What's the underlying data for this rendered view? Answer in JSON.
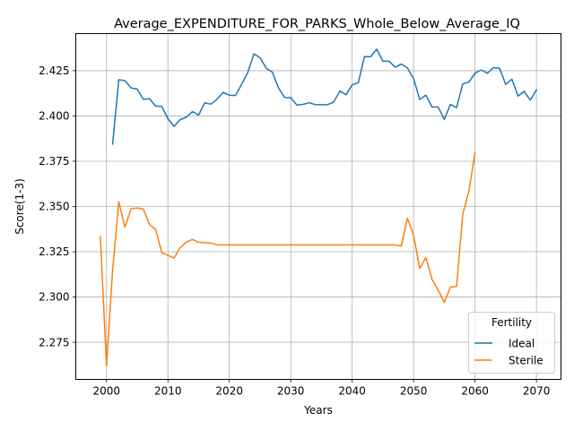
{
  "chart_data": {
    "type": "line",
    "title": "Average_EXPENDITURE_FOR_PARKS_Whole_Below_Average_IQ",
    "xlabel": "Years",
    "ylabel": "Score(1-3)",
    "xlim": [
      1995,
      2074
    ],
    "ylim": [
      2.2545,
      2.4455
    ],
    "xticks": [
      2000,
      2010,
      2020,
      2030,
      2040,
      2050,
      2060,
      2070
    ],
    "yticks": [
      2.275,
      2.3,
      2.325,
      2.35,
      2.375,
      2.4,
      2.425
    ],
    "ytick_labels": [
      "2.275",
      "2.300",
      "2.325",
      "2.350",
      "2.375",
      "2.400",
      "2.425"
    ],
    "grid": true,
    "legend": {
      "title": "Fertility",
      "placement": "lower-right"
    },
    "series": [
      {
        "name": "Ideal",
        "color": "#1f77b4",
        "x": [
          2001,
          2002,
          2003,
          2004,
          2005,
          2006,
          2007,
          2008,
          2009,
          2010,
          2011,
          2012,
          2013,
          2014,
          2015,
          2016,
          2017,
          2018,
          2019,
          2020,
          2021,
          2022,
          2023,
          2024,
          2025,
          2026,
          2027,
          2028,
          2029,
          2030,
          2031,
          2032,
          2033,
          2034,
          2035,
          2036,
          2037,
          2038,
          2039,
          2040,
          2041,
          2042,
          2043,
          2044,
          2045,
          2046,
          2047,
          2048,
          2049,
          2050,
          2051,
          2052,
          2053,
          2054,
          2055,
          2056,
          2057,
          2058,
          2059,
          2060,
          2061,
          2062,
          2063,
          2064,
          2065,
          2066,
          2067,
          2068,
          2069,
          2070
        ],
        "values": [
          2.3845,
          2.42,
          2.4195,
          2.4155,
          2.4148,
          2.4092,
          2.4095,
          2.4055,
          2.4053,
          2.3985,
          2.3943,
          2.398,
          2.3993,
          2.4024,
          2.4005,
          2.4073,
          2.4065,
          2.4093,
          2.413,
          2.4115,
          2.4113,
          2.4175,
          2.424,
          2.4343,
          2.4322,
          2.4264,
          2.4242,
          2.4155,
          2.4102,
          2.4101,
          2.406,
          2.4064,
          2.4073,
          2.4063,
          2.4062,
          2.4062,
          2.4078,
          2.4138,
          2.4117,
          2.4172,
          2.4183,
          2.4328,
          2.4327,
          2.4369,
          2.4303,
          2.4303,
          2.4269,
          2.4287,
          2.4266,
          2.4206,
          2.4091,
          2.4115,
          2.405,
          2.4049,
          2.3981,
          2.4064,
          2.4046,
          2.4177,
          2.4187,
          2.4237,
          2.4254,
          2.4236,
          2.4267,
          2.4263,
          2.4174,
          2.4203,
          2.411,
          2.4136,
          2.4087,
          2.4144
        ]
      },
      {
        "name": "Sterile",
        "color": "#ff7f0e",
        "x": [
          1999,
          2000,
          2001,
          2002,
          2003,
          2004,
          2005,
          2006,
          2007,
          2008,
          2009,
          2010,
          2011,
          2012,
          2013,
          2014,
          2015,
          2016,
          2017,
          2018,
          2019,
          2020,
          2021,
          2022,
          2023,
          2024,
          2025,
          2026,
          2027,
          2028,
          2029,
          2030,
          2031,
          2032,
          2033,
          2034,
          2035,
          2036,
          2037,
          2038,
          2039,
          2040,
          2041,
          2042,
          2043,
          2044,
          2045,
          2046,
          2047,
          2048,
          2049,
          2050,
          2051,
          2052,
          2053,
          2054,
          2055,
          2056,
          2057,
          2058,
          2059,
          2060
        ],
        "values": [
          2.3333,
          2.2621,
          2.315,
          2.3526,
          2.3386,
          2.3487,
          2.3492,
          2.3486,
          2.34,
          2.3373,
          2.3245,
          2.323,
          2.3215,
          2.3273,
          2.3303,
          2.3318,
          2.3302,
          2.33,
          2.3298,
          2.3288,
          2.3288,
          2.3288,
          2.3288,
          2.3288,
          2.3288,
          2.3288,
          2.3288,
          2.3288,
          2.3288,
          2.3288,
          2.3288,
          2.3288,
          2.3288,
          2.3288,
          2.3288,
          2.3288,
          2.3288,
          2.3288,
          2.3288,
          2.3288,
          2.3288,
          2.3288,
          2.3288,
          2.3288,
          2.3288,
          2.3288,
          2.3288,
          2.3288,
          2.3288,
          2.3283,
          2.3435,
          2.3342,
          2.3157,
          2.3218,
          2.3098,
          2.3038,
          2.297,
          2.3055,
          2.3058,
          2.3457,
          2.3583,
          2.3798
        ]
      }
    ]
  }
}
